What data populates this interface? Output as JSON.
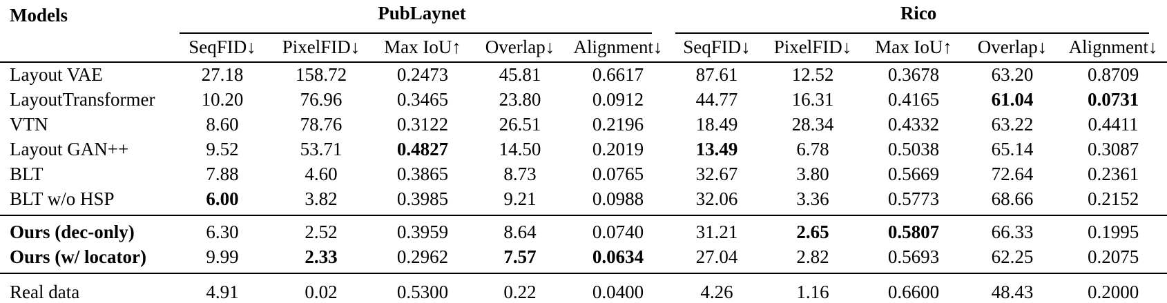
{
  "table": {
    "models_header": "Models",
    "groups": [
      {
        "title": "PubLaynet",
        "columns": [
          "SeqFID↓",
          "PixelFID↓",
          "Max IoU↑",
          "Overlap↓",
          "Alignment↓"
        ]
      },
      {
        "title": "Rico",
        "columns": [
          "SeqFID↓",
          "PixelFID↓",
          "Max IoU↑",
          "Overlap↓",
          "Alignment↓"
        ]
      }
    ],
    "sections": [
      {
        "rows": [
          {
            "name": "Layout VAE",
            "bold_name": false,
            "values": [
              "27.18",
              "158.72",
              "0.2473",
              "45.81",
              "0.6617",
              "87.61",
              "12.52",
              "0.3678",
              "63.20",
              "0.8709"
            ],
            "bold": []
          },
          {
            "name": "LayoutTransformer",
            "bold_name": false,
            "values": [
              "10.20",
              "76.96",
              "0.3465",
              "23.80",
              "0.0912",
              "44.77",
              "16.31",
              "0.4165",
              "61.04",
              "0.0731"
            ],
            "bold": [
              8,
              9
            ]
          },
          {
            "name": "VTN",
            "bold_name": false,
            "values": [
              "8.60",
              "78.76",
              "0.3122",
              "26.51",
              "0.2196",
              "18.49",
              "28.34",
              "0.4332",
              "63.22",
              "0.4411"
            ],
            "bold": []
          },
          {
            "name": "Layout GAN++",
            "bold_name": false,
            "values": [
              "9.52",
              "53.71",
              "0.4827",
              "14.50",
              "0.2019",
              "13.49",
              "6.78",
              "0.5038",
              "65.14",
              "0.3087"
            ],
            "bold": [
              2,
              5
            ]
          },
          {
            "name": "BLT",
            "bold_name": false,
            "values": [
              "7.88",
              "4.60",
              "0.3865",
              "8.73",
              "0.0765",
              "32.67",
              "3.80",
              "0.5669",
              "72.64",
              "0.2361"
            ],
            "bold": []
          },
          {
            "name": "BLT w/o HSP",
            "bold_name": false,
            "values": [
              "6.00",
              "3.82",
              "0.3985",
              "9.21",
              "0.0988",
              "32.06",
              "3.36",
              "0.5773",
              "68.66",
              "0.2152"
            ],
            "bold": [
              0
            ]
          }
        ]
      },
      {
        "rows": [
          {
            "name": "Ours (dec-only)",
            "bold_name": true,
            "values": [
              "6.30",
              "2.52",
              "0.3959",
              "8.64",
              "0.0740",
              "31.21",
              "2.65",
              "0.5807",
              "66.33",
              "0.1995"
            ],
            "bold": [
              6,
              7
            ]
          },
          {
            "name": "Ours (w/ locator)",
            "bold_name": true,
            "values": [
              "9.99",
              "2.33",
              "0.2962",
              "7.57",
              "0.0634",
              "27.04",
              "2.82",
              "0.5693",
              "62.25",
              "0.2075"
            ],
            "bold": [
              1,
              3,
              4
            ]
          }
        ]
      },
      {
        "rows": [
          {
            "name": "Real data",
            "bold_name": false,
            "values": [
              "4.91",
              "0.02",
              "0.5300",
              "0.22",
              "0.0400",
              "4.26",
              "1.16",
              "0.6600",
              "48.43",
              "0.2000"
            ],
            "bold": []
          }
        ]
      }
    ]
  }
}
